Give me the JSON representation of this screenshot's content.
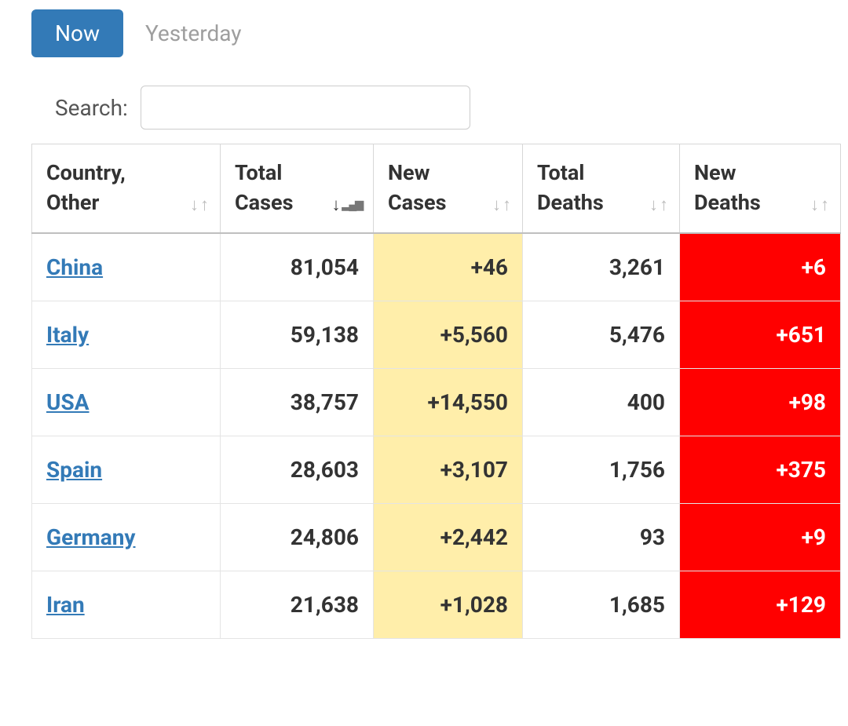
{
  "tabs": {
    "now": "Now",
    "yesterday": "Yesterday"
  },
  "search": {
    "label": "Search:"
  },
  "colors": {
    "tab_active_bg": "#337ab7",
    "tab_inactive_fg": "#9e9e9e",
    "link": "#337ab7",
    "new_cases_bg": "#ffeeaa",
    "new_deaths_bg": "#ff0000",
    "new_deaths_fg": "#ffffff",
    "border": "#d7d7d7"
  },
  "table": {
    "columns": [
      {
        "label": "Country,\nOther",
        "sort": "neutral"
      },
      {
        "label": "Total\nCases",
        "sort": "desc"
      },
      {
        "label": "New\nCases",
        "sort": "neutral"
      },
      {
        "label": "Total\nDeaths",
        "sort": "neutral"
      },
      {
        "label": "New\nDeaths",
        "sort": "neutral"
      }
    ],
    "rows": [
      {
        "country": "China",
        "total_cases": "81,054",
        "new_cases": "+46",
        "total_deaths": "3,261",
        "new_deaths": "+6"
      },
      {
        "country": "Italy",
        "total_cases": "59,138",
        "new_cases": "+5,560",
        "total_deaths": "5,476",
        "new_deaths": "+651"
      },
      {
        "country": "USA",
        "total_cases": "38,757",
        "new_cases": "+14,550",
        "total_deaths": "400",
        "new_deaths": "+98"
      },
      {
        "country": "Spain",
        "total_cases": "28,603",
        "new_cases": "+3,107",
        "total_deaths": "1,756",
        "new_deaths": "+375"
      },
      {
        "country": "Germany",
        "total_cases": "24,806",
        "new_cases": "+2,442",
        "total_deaths": "93",
        "new_deaths": "+9"
      },
      {
        "country": "Iran",
        "total_cases": "21,638",
        "new_cases": "+1,028",
        "total_deaths": "1,685",
        "new_deaths": "+129"
      }
    ]
  }
}
